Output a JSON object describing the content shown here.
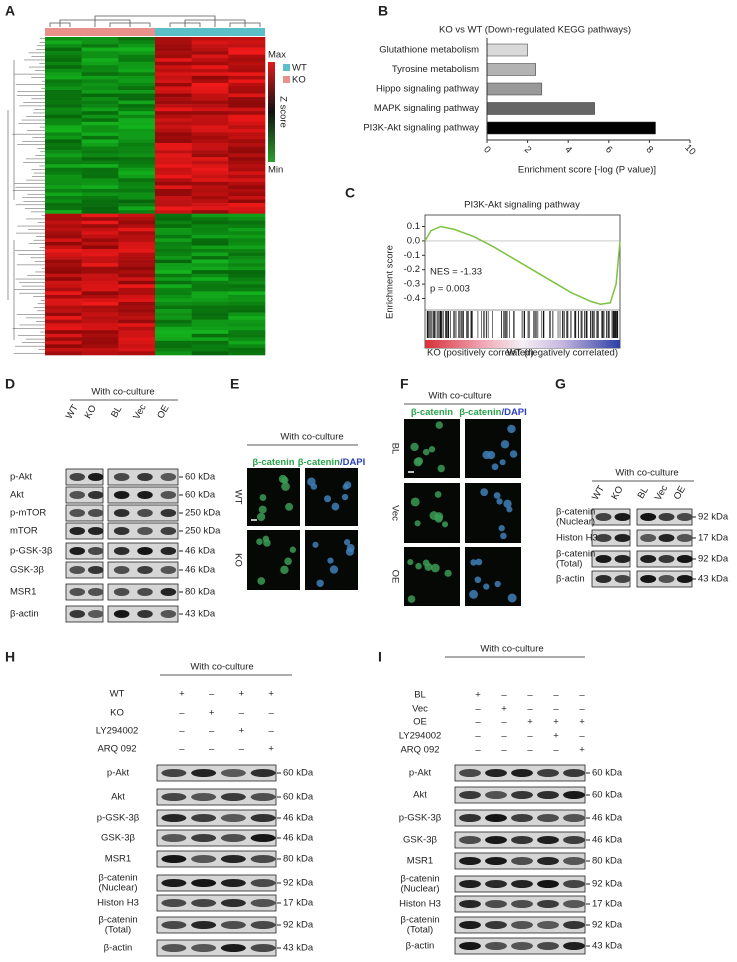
{
  "panel_labels": [
    "A",
    "B",
    "C",
    "D",
    "E",
    "F",
    "G",
    "H",
    "I"
  ],
  "heatmap": {
    "groups": [
      "WT",
      "KO"
    ],
    "scale_max": "Max",
    "scale_min": "Min",
    "scale_title": "Z score"
  },
  "chart_data": [
    {
      "type": "bar",
      "orientation": "horizontal",
      "title": "KO vs WT (Down-regulated KEGG pathways)",
      "categories": [
        "Glutathione metabolism",
        "Tyrosine metabolism",
        "Hippo signaling pathway",
        "MAPK signaling pathway",
        "PI3K-Akt signaling pathway"
      ],
      "values": [
        2.0,
        2.4,
        2.7,
        5.3,
        8.3
      ],
      "colors": [
        "#d9d9d9",
        "#b3b3b3",
        "#999999",
        "#666666",
        "#000000"
      ],
      "label_colors": [
        "#222222",
        "#222222",
        "#222222",
        "#222222",
        "#c0272d"
      ],
      "x_label": "Enrichment score [-log (P value)]",
      "xlim": [
        0,
        10
      ],
      "xticks": [
        0,
        2,
        4,
        6,
        8,
        10
      ]
    },
    {
      "type": "line",
      "title": "PI3K-Akt signaling pathway",
      "title_color": "#c0272d",
      "y_label": "Enrichment score",
      "annotations": [
        "NES = -1.33",
        "p = 0.003"
      ],
      "phenotype_labels": [
        "KO (positively correlated)",
        "WT (negatively correlated)"
      ],
      "x": [
        0,
        3,
        8,
        15,
        25,
        35,
        45,
        55,
        65,
        75,
        85,
        90,
        95,
        98,
        100
      ],
      "values": [
        0,
        0.07,
        0.1,
        0.08,
        0.03,
        -0.04,
        -0.12,
        -0.2,
        -0.28,
        -0.36,
        -0.42,
        -0.44,
        -0.43,
        -0.3,
        0
      ],
      "color": "#7dc242",
      "xlim": [
        0,
        100
      ],
      "ylim": [
        -0.48,
        0.18
      ],
      "yticks": [
        0.1,
        {
          "value": 0,
          "label": "0.0"
        },
        -0.1,
        -0.2,
        -0.3,
        -0.4
      ]
    }
  ],
  "blots": {
    "D": {
      "header": "With co-culture",
      "lanes": [
        "WT",
        "KO",
        "BL",
        "Vec",
        "OE"
      ],
      "rows": [
        {
          "protein": [
            "p-Akt"
          ],
          "size": "60 kDa"
        },
        {
          "protein": [
            "Akt"
          ],
          "size": "60 kDa"
        },
        {
          "protein": [
            "p-mTOR"
          ],
          "size": "250 kDa"
        },
        {
          "protein": [
            "mTOR"
          ],
          "size": "250 kDa"
        },
        {
          "protein": [
            "p-GSK-3β"
          ],
          "size": "46 kDa"
        },
        {
          "protein": [
            "GSK-3β"
          ],
          "size": "46 kDa"
        },
        {
          "protein": [
            "MSR1"
          ],
          "size": "80 kDa"
        },
        {
          "protein": [
            "β-actin"
          ],
          "size": "43 kDa"
        }
      ]
    },
    "G": {
      "header": "With co-culture",
      "lanes": [
        "WT",
        "KO",
        "BL",
        "Vec",
        "OE"
      ],
      "rows": [
        {
          "protein": [
            "β-catenin",
            "(Nuclear)"
          ],
          "size": "92 kDa"
        },
        {
          "protein": [
            "Histon H3"
          ],
          "size": "17 kDa"
        },
        {
          "protein": [
            "β-catenin",
            "(Total)"
          ],
          "size": "92 kDa"
        },
        {
          "protein": [
            "β-actin"
          ],
          "size": "43 kDa"
        }
      ]
    },
    "H": {
      "header": "With co-culture",
      "conditions": [
        {
          "name": "WT",
          "signs": [
            "+",
            "–",
            "+",
            "+"
          ]
        },
        {
          "name": "KO",
          "signs": [
            "–",
            "+",
            "–",
            "–"
          ]
        },
        {
          "name": "LY294002",
          "signs": [
            "–",
            "–",
            "+",
            "–"
          ]
        },
        {
          "name": "ARQ 092",
          "signs": [
            "–",
            "–",
            "–",
            "+"
          ]
        }
      ],
      "rows": [
        {
          "protein": [
            "p-Akt"
          ],
          "size": "60 kDa"
        },
        {
          "protein": [
            "Akt"
          ],
          "size": "60 kDa"
        },
        {
          "protein": [
            "p-GSK-3β"
          ],
          "size": "46 kDa"
        },
        {
          "protein": [
            "GSK-3β"
          ],
          "size": "46 kDa"
        },
        {
          "protein": [
            "MSR1"
          ],
          "size": "80 kDa"
        },
        {
          "protein": [
            "β-catenin",
            "(Nuclear)"
          ],
          "size": "92 kDa"
        },
        {
          "protein": [
            "Histon H3"
          ],
          "size": "17 kDa"
        },
        {
          "protein": [
            "β-catenin",
            "(Total)"
          ],
          "size": "92 kDa"
        },
        {
          "protein": [
            "β-actin"
          ],
          "size": "43 kDa"
        }
      ]
    },
    "I": {
      "header": "With co-culture",
      "conditions": [
        {
          "name": "BL",
          "signs": [
            "+",
            "–",
            "–",
            "–",
            "–"
          ]
        },
        {
          "name": "Vec",
          "signs": [
            "–",
            "+",
            "–",
            "–",
            "–"
          ]
        },
        {
          "name": "OE",
          "signs": [
            "–",
            "–",
            "+",
            "+",
            "+"
          ]
        },
        {
          "name": "LY294002",
          "signs": [
            "–",
            "–",
            "–",
            "+",
            "–"
          ]
        },
        {
          "name": "ARQ 092",
          "signs": [
            "–",
            "–",
            "–",
            "–",
            "+"
          ]
        }
      ],
      "rows": [
        {
          "protein": [
            "p-Akt"
          ],
          "size": "60 kDa"
        },
        {
          "protein": [
            "Akt"
          ],
          "size": "60 kDa"
        },
        {
          "protein": [
            "p-GSK-3β"
          ],
          "size": "46 kDa"
        },
        {
          "protein": [
            "GSK-3β"
          ],
          "size": "46 kDa"
        },
        {
          "protein": [
            "MSR1"
          ],
          "size": "80 kDa"
        },
        {
          "protein": [
            "β-catenin",
            "(Nuclear)"
          ],
          "size": "92 kDa"
        },
        {
          "protein": [
            "Histon H3"
          ],
          "size": "17 kDa"
        },
        {
          "protein": [
            "β-catenin",
            "(Total)"
          ],
          "size": "92 kDa"
        },
        {
          "protein": [
            "β-actin"
          ],
          "size": "43 kDa"
        }
      ]
    }
  },
  "imaging": {
    "E": {
      "header": "With co-culture",
      "channels": [
        {
          "marker": "β-catenin"
        },
        {
          "marker": "β-catenin",
          "counterstain": "/DAPI"
        }
      ],
      "rows": [
        "WT",
        "KO"
      ]
    },
    "F": {
      "header": "With co-culture",
      "channels": [
        {
          "marker": "β-catenin"
        },
        {
          "marker": "β-catenin",
          "counterstain": "/DAPI"
        }
      ],
      "rows": [
        "BL",
        "Vec",
        "OE"
      ]
    }
  }
}
